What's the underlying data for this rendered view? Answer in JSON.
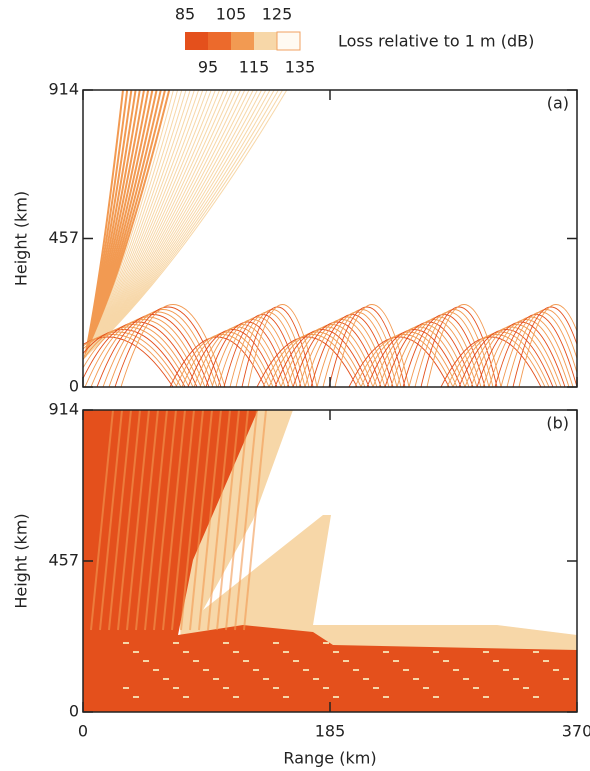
{
  "legend": {
    "title": "Loss relative to 1 m (dB)",
    "levels": [
      85,
      95,
      105,
      115,
      125,
      135
    ],
    "colors": [
      "#e4501c",
      "#ec6a2c",
      "#f29a52",
      "#f7d7a8",
      "#fffaf2"
    ]
  },
  "chart_data": [
    {
      "type": "heatmap",
      "label": "(a)",
      "ylabel": "Height (km)",
      "xlim": [
        0,
        370
      ],
      "ylim": [
        0,
        914
      ],
      "xticks": [
        0,
        185,
        370
      ],
      "yticks": [
        0,
        457,
        914
      ]
    },
    {
      "type": "heatmap",
      "label": "(b)",
      "ylabel": "Height (km)",
      "xlabel": "Range (km)",
      "xlim": [
        0,
        370
      ],
      "ylim": [
        0,
        914
      ],
      "xticks": [
        0,
        185,
        370
      ],
      "yticks": [
        0,
        457,
        914
      ]
    }
  ]
}
